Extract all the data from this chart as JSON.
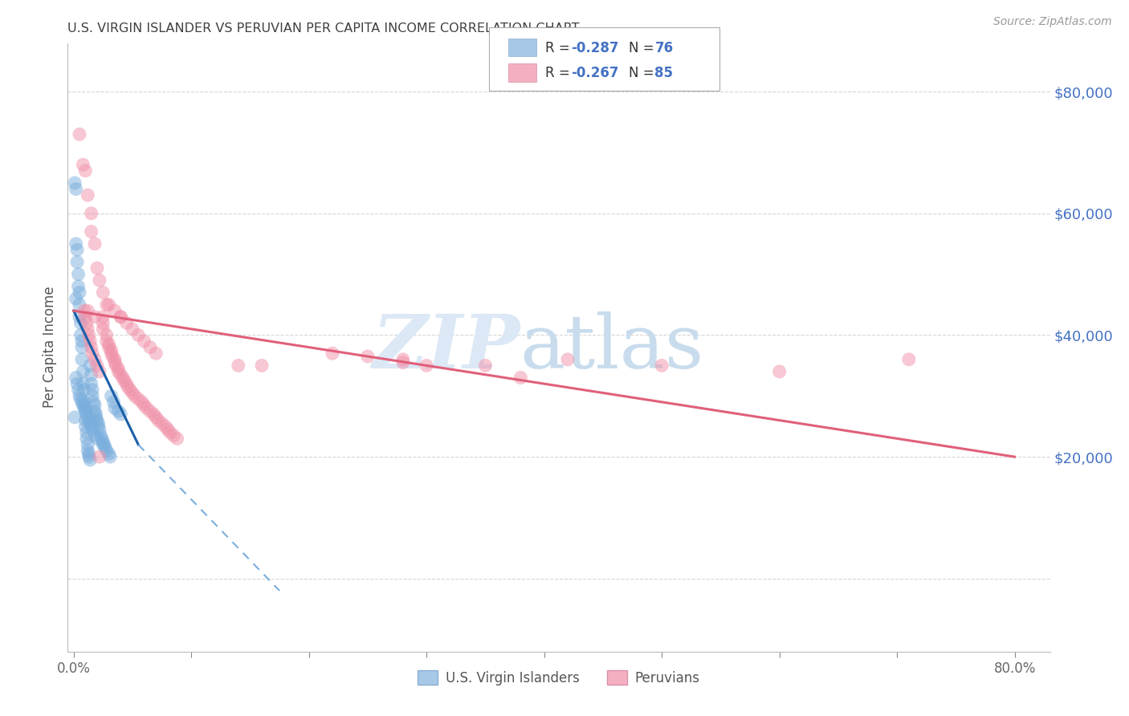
{
  "title": "U.S. VIRGIN ISLANDER VS PERUVIAN PER CAPITA INCOME CORRELATION CHART",
  "source": "Source: ZipAtlas.com",
  "ylabel": "Per Capita Income",
  "legend_label_blue": "U.S. Virgin Islanders",
  "legend_label_pink": "Peruvians",
  "blue_color": "#7aaedd",
  "pink_color": "#f090a8",
  "title_color": "#404040",
  "right_axis_color": "#4472c4",
  "blue_line": {
    "x0": 0.0,
    "y0": 44000,
    "x1": 0.055,
    "y1": 22000
  },
  "blue_line_dashed": {
    "x0": 0.055,
    "y0": 22000,
    "x1": 0.175,
    "y1": -2000
  },
  "pink_line": {
    "x0": 0.0,
    "y0": 44000,
    "x1": 0.8,
    "y1": 20000
  },
  "grid_color": "#cccccc",
  "background_color": "#ffffff",
  "xlim": [
    -0.005,
    0.83
  ],
  "ylim": [
    -12000,
    88000
  ],
  "blue_scatter_x": [
    0.001,
    0.002,
    0.002,
    0.002,
    0.003,
    0.003,
    0.004,
    0.004,
    0.005,
    0.005,
    0.005,
    0.006,
    0.006,
    0.007,
    0.007,
    0.007,
    0.008,
    0.008,
    0.009,
    0.009,
    0.01,
    0.01,
    0.01,
    0.011,
    0.011,
    0.012,
    0.012,
    0.013,
    0.013,
    0.014,
    0.014,
    0.015,
    0.015,
    0.016,
    0.016,
    0.017,
    0.018,
    0.018,
    0.019,
    0.019,
    0.02,
    0.021,
    0.021,
    0.022,
    0.023,
    0.024,
    0.025,
    0.026,
    0.027,
    0.028,
    0.03,
    0.031,
    0.032,
    0.034,
    0.035,
    0.038,
    0.04,
    0.001,
    0.002,
    0.003,
    0.004,
    0.005,
    0.006,
    0.007,
    0.008,
    0.009,
    0.01,
    0.011,
    0.012,
    0.013,
    0.014,
    0.015,
    0.016,
    0.018,
    0.02,
    0.025
  ],
  "blue_scatter_y": [
    65000,
    64000,
    55000,
    46000,
    54000,
    52000,
    50000,
    48000,
    47000,
    45000,
    43000,
    42000,
    40000,
    39000,
    38000,
    36000,
    34000,
    32000,
    31000,
    29000,
    28000,
    26000,
    25000,
    24000,
    23000,
    22000,
    21000,
    20500,
    20000,
    19500,
    35000,
    33500,
    32000,
    31000,
    30000,
    29000,
    28500,
    27500,
    27000,
    26500,
    26000,
    25500,
    25000,
    24500,
    23500,
    23000,
    22500,
    22000,
    21500,
    21000,
    20500,
    20000,
    30000,
    29000,
    28000,
    27500,
    27000,
    26500,
    33000,
    32000,
    31000,
    30000,
    29500,
    29000,
    28500,
    28000,
    27500,
    27000,
    26500,
    26000,
    25500,
    25000,
    24500,
    23500,
    23000,
    22000
  ],
  "pink_scatter_x": [
    0.005,
    0.008,
    0.01,
    0.012,
    0.012,
    0.015,
    0.015,
    0.018,
    0.018,
    0.02,
    0.022,
    0.022,
    0.025,
    0.025,
    0.025,
    0.028,
    0.028,
    0.028,
    0.03,
    0.03,
    0.032,
    0.032,
    0.033,
    0.035,
    0.035,
    0.036,
    0.038,
    0.038,
    0.04,
    0.04,
    0.042,
    0.043,
    0.045,
    0.046,
    0.048,
    0.05,
    0.052,
    0.055,
    0.058,
    0.06,
    0.062,
    0.065,
    0.068,
    0.07,
    0.072,
    0.075,
    0.078,
    0.08,
    0.082,
    0.085,
    0.088,
    0.009,
    0.01,
    0.011,
    0.012,
    0.013,
    0.014,
    0.015,
    0.016,
    0.018,
    0.02,
    0.022,
    0.025,
    0.03,
    0.035,
    0.04,
    0.045,
    0.05,
    0.055,
    0.06,
    0.065,
    0.07,
    0.14,
    0.16,
    0.22,
    0.28,
    0.35,
    0.38,
    0.42,
    0.5,
    0.6,
    0.71,
    0.3,
    0.28,
    0.25
  ],
  "pink_scatter_y": [
    73000,
    68000,
    67000,
    63000,
    44000,
    60000,
    57000,
    55000,
    43000,
    51000,
    49000,
    20000,
    42000,
    41000,
    47000,
    40000,
    39000,
    45000,
    38500,
    38000,
    37500,
    37000,
    36500,
    36000,
    35500,
    35000,
    34500,
    34000,
    33500,
    43000,
    33000,
    32500,
    32000,
    31500,
    31000,
    30500,
    30000,
    29500,
    29000,
    28500,
    28000,
    27500,
    27000,
    26500,
    26000,
    25500,
    25000,
    24500,
    24000,
    23500,
    23000,
    44000,
    43000,
    42000,
    41000,
    40000,
    39000,
    38000,
    37000,
    36000,
    35000,
    34000,
    43000,
    45000,
    44000,
    43000,
    42000,
    41000,
    40000,
    39000,
    38000,
    37000,
    35000,
    35000,
    37000,
    35500,
    35000,
    33000,
    36000,
    35000,
    34000,
    36000,
    35000,
    36000,
    36500
  ]
}
